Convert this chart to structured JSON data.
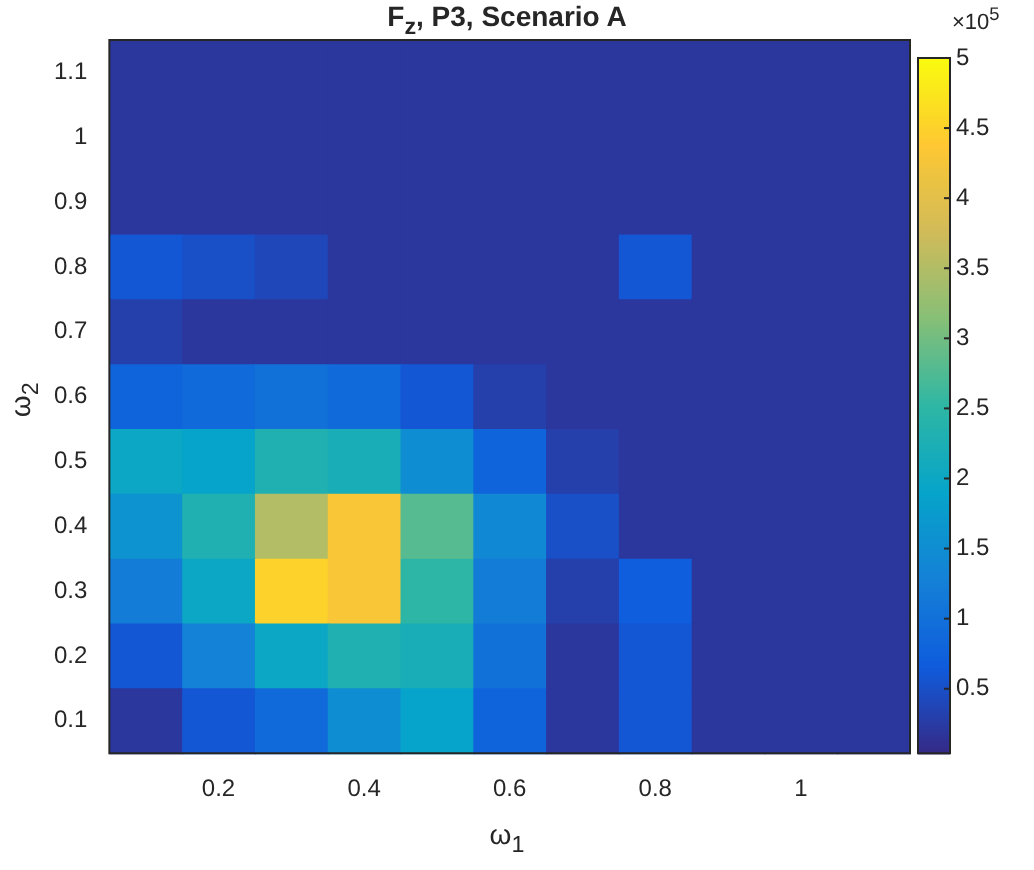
{
  "chart_data": {
    "type": "heatmap",
    "title": "F$_{z}$, P3, Scenario A",
    "xlabel": "ω$_{1}$",
    "ylabel": "ω$_{2}$",
    "categories": [
      null,
      "0.2",
      null,
      "0.4",
      null,
      "0.6",
      null,
      "0.8",
      null,
      "1",
      null
    ],
    "y_categories": [
      "1.1",
      "1",
      "0.9",
      "0.8",
      "0.7",
      "0.6",
      "0.5",
      "0.4",
      "0.3",
      "0.2",
      "0.1"
    ],
    "cells": [
      [
        0.2,
        0.2,
        0.2,
        0.2,
        0.2,
        0.2,
        0.2,
        0.2,
        0.2,
        0.2,
        0.2
      ],
      [
        0.2,
        0.2,
        0.2,
        0.2,
        0.2,
        0.2,
        0.2,
        0.2,
        0.2,
        0.2,
        0.2
      ],
      [
        0.2,
        0.2,
        0.2,
        0.2,
        0.2,
        0.2,
        0.2,
        0.2,
        0.2,
        0.2,
        0.2
      ],
      [
        0.6,
        0.5,
        0.4,
        0.2,
        0.2,
        0.2,
        0.2,
        0.6,
        0.2,
        0.2,
        0.2
      ],
      [
        0.3,
        0.2,
        0.2,
        0.2,
        0.2,
        0.2,
        0.2,
        0.2,
        0.2,
        0.2,
        0.2
      ],
      [
        0.8,
        0.9,
        1.0,
        0.9,
        0.6,
        0.3,
        0.2,
        0.2,
        0.2,
        0.2,
        0.2
      ],
      [
        2.0,
        1.9,
        2.3,
        2.2,
        1.5,
        0.8,
        0.3,
        0.2,
        0.2,
        0.2,
        0.2
      ],
      [
        1.6,
        2.3,
        3.5,
        4.3,
        2.8,
        1.4,
        0.5,
        0.2,
        0.2,
        0.2,
        0.2
      ],
      [
        1.2,
        2.0,
        4.5,
        4.3,
        2.5,
        1.2,
        0.3,
        0.7,
        0.2,
        0.2,
        0.2
      ],
      [
        0.6,
        1.3,
        2.0,
        2.3,
        2.2,
        1.0,
        0.2,
        0.6,
        0.2,
        0.2,
        0.2
      ],
      [
        0.2,
        0.6,
        0.9,
        1.5,
        1.9,
        0.8,
        0.2,
        0.6,
        0.2,
        0.2,
        0.2
      ]
    ],
    "clim": [
      0.04,
      5
    ],
    "cticks": [
      0.5,
      1,
      1.5,
      2,
      2.5,
      3,
      3.5,
      4,
      4.5,
      5
    ],
    "annotations": [
      "×10$^{5}$"
    ]
  }
}
